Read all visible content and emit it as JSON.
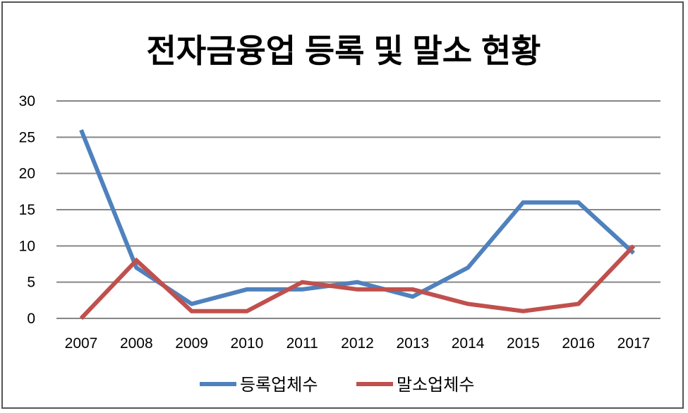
{
  "chart_data": {
    "type": "line",
    "title": "전자금융업 등록 및 말소 현황",
    "xlabel": "",
    "ylabel": "",
    "categories": [
      "2007",
      "2008",
      "2009",
      "2010",
      "2011",
      "2012",
      "2013",
      "2014",
      "2015",
      "2016",
      "2017"
    ],
    "ylim": [
      0,
      30
    ],
    "yticks": [
      "0",
      "5",
      "10",
      "15",
      "20",
      "25",
      "30"
    ],
    "grid": true,
    "legend_position": "bottom",
    "series": [
      {
        "name": "등록업체수",
        "color": "#4f81bd",
        "values": [
          26,
          7,
          2,
          4,
          4,
          5,
          3,
          7,
          16,
          16,
          9
        ]
      },
      {
        "name": "말소업체수",
        "color": "#c0504d",
        "values": [
          0,
          8,
          1,
          1,
          5,
          4,
          4,
          2,
          1,
          2,
          10
        ]
      }
    ]
  }
}
